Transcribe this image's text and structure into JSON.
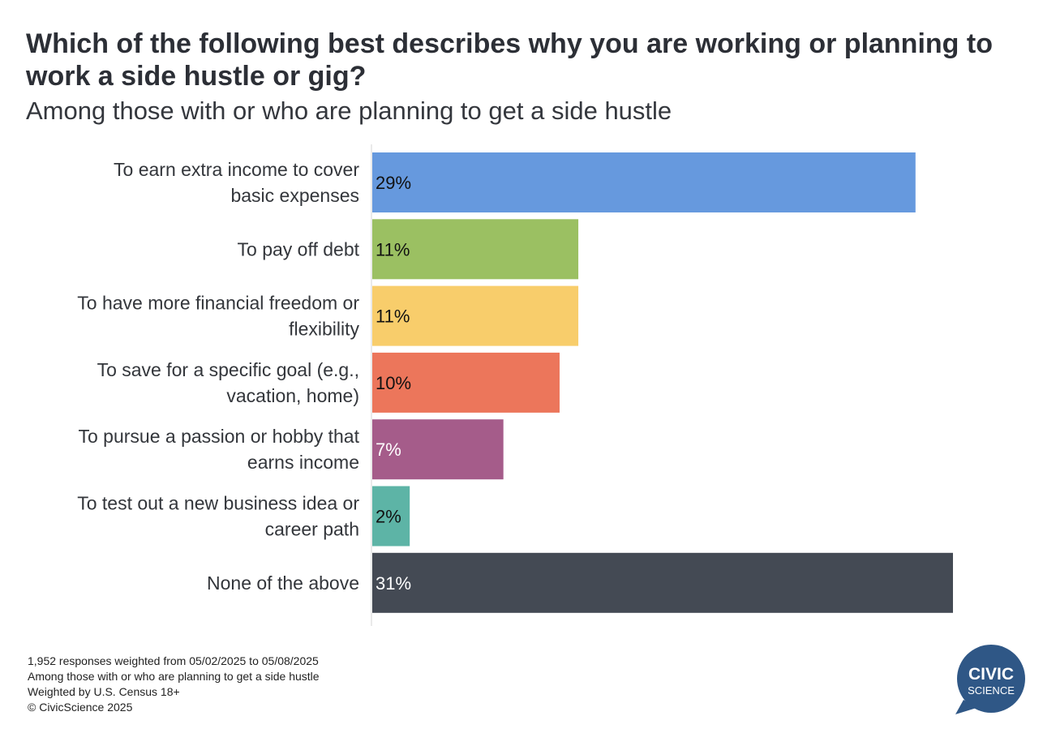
{
  "header": {
    "title": "Which of the following best describes why you are working or planning to work a side hustle or gig?",
    "subtitle": "Among those with or who are planning to get a side hustle"
  },
  "chart_data": {
    "type": "bar",
    "orientation": "horizontal",
    "categories": [
      [
        "To earn extra income to cover",
        "basic expenses"
      ],
      [
        "To pay off debt"
      ],
      [
        "To have more financial freedom or",
        "flexibility"
      ],
      [
        "To save for a specific goal (e.g.,",
        "vacation, home)"
      ],
      [
        "To pursue a passion or hobby that",
        "earns income"
      ],
      [
        "To test out a new business idea or",
        "career path"
      ],
      [
        "None of the above"
      ]
    ],
    "values": [
      29,
      11,
      11,
      10,
      7,
      2,
      31
    ],
    "value_labels": [
      "29%",
      "11%",
      "11%",
      "10%",
      "7%",
      "2%",
      "31%"
    ],
    "colors": [
      "#6699de",
      "#9bc062",
      "#f8cd6b",
      "#ec765b",
      "#a55c8a",
      "#5db4a6",
      "#444a54"
    ],
    "label_colors": [
      "#111111",
      "#111111",
      "#111111",
      "#111111",
      "#ffffff",
      "#111111",
      "#ffffff"
    ],
    "xlim": [
      0,
      31
    ],
    "grid": false,
    "legend": "none"
  },
  "footnote": {
    "lines": [
      "1,952 responses weighted from 05/02/2025 to 05/08/2025",
      "Among those with or who are planning to get a side hustle",
      "Weighted by U.S. Census 18+",
      "© CivicScience 2025"
    ]
  },
  "logo": {
    "line1": "CIVIC",
    "line2": "SCIENCE",
    "color": "#2f5786"
  }
}
